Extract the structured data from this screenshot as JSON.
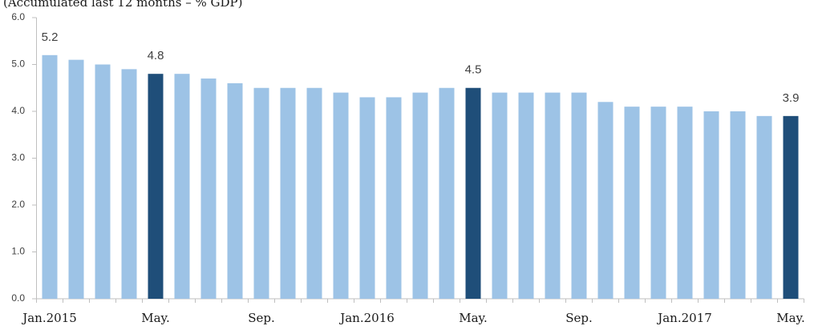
{
  "chart_data": {
    "type": "bar",
    "title": "(Accumulated last 12 months – % GDP)",
    "categories": [
      "Jan.2015",
      null,
      null,
      null,
      "May.",
      null,
      null,
      null,
      "Sep.",
      null,
      null,
      null,
      "Jan.2016",
      null,
      null,
      null,
      "May.",
      null,
      null,
      null,
      "Sep.",
      null,
      null,
      null,
      "Jan.2017",
      null,
      null,
      null,
      "May."
    ],
    "values": [
      5.2,
      5.1,
      5.0,
      4.9,
      4.8,
      4.8,
      4.7,
      4.6,
      4.5,
      4.5,
      4.5,
      4.4,
      4.3,
      4.3,
      4.4,
      4.5,
      4.5,
      4.4,
      4.4,
      4.4,
      4.4,
      4.2,
      4.1,
      4.1,
      4.1,
      4.0,
      4.0,
      3.9,
      3.9
    ],
    "colors": [
      "#9dc3e6",
      "#9dc3e6",
      "#9dc3e6",
      "#9dc3e6",
      "#1f4e79",
      "#9dc3e6",
      "#9dc3e6",
      "#9dc3e6",
      "#9dc3e6",
      "#9dc3e6",
      "#9dc3e6",
      "#9dc3e6",
      "#9dc3e6",
      "#9dc3e6",
      "#9dc3e6",
      "#9dc3e6",
      "#1f4e79",
      "#9dc3e6",
      "#9dc3e6",
      "#9dc3e6",
      "#9dc3e6",
      "#9dc3e6",
      "#9dc3e6",
      "#9dc3e6",
      "#9dc3e6",
      "#9dc3e6",
      "#9dc3e6",
      "#9dc3e6",
      "#1f4e79"
    ],
    "labeled": [
      0,
      4,
      16,
      28
    ],
    "ylim": [
      0,
      6
    ],
    "yticks": [
      {
        "value": 0,
        "label": "0.0"
      },
      {
        "value": 1,
        "label": "1.0"
      },
      {
        "value": 2,
        "label": "2.0"
      },
      {
        "value": 3,
        "label": "3.0"
      },
      {
        "value": 4,
        "label": "4.0"
      },
      {
        "value": 5,
        "label": "5.0"
      },
      {
        "value": 6,
        "label": "6.0"
      }
    ],
    "grid": false
  }
}
